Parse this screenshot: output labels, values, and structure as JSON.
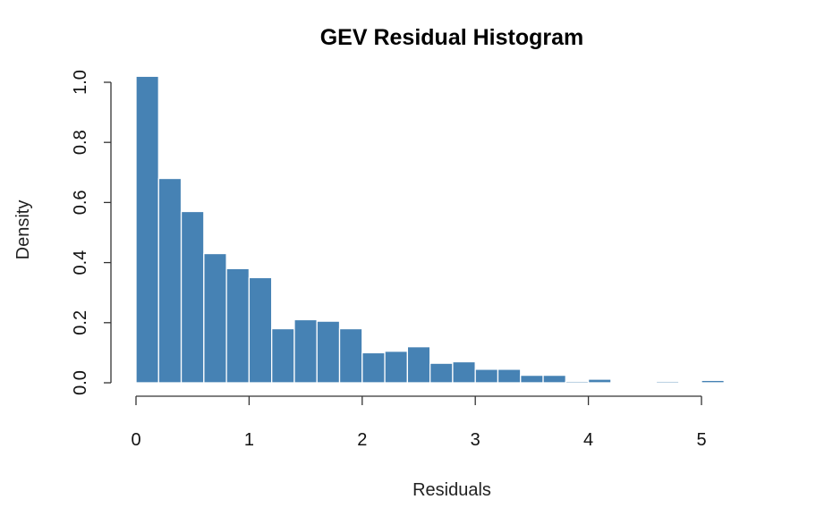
{
  "chart_data": {
    "type": "bar",
    "title": "GEV Residual Histogram",
    "xlabel": "Residuals",
    "ylabel": "Density",
    "bar_color": "#4682b4",
    "border_color": "#ffffff",
    "xlim": [
      0,
      5
    ],
    "ylim": [
      0,
      1
    ],
    "x_ticks": [
      "0",
      "1",
      "2",
      "3",
      "4",
      "5"
    ],
    "y_ticks": [
      "0.0",
      "0.2",
      "0.4",
      "0.6",
      "0.8",
      "1.0"
    ],
    "bin_width": 0.2,
    "bin_starts": [
      0.0,
      0.2,
      0.4,
      0.6,
      0.8,
      1.0,
      1.2,
      1.4,
      1.6,
      1.8,
      2.0,
      2.2,
      2.4,
      2.6,
      2.8,
      3.0,
      3.2,
      3.4,
      3.6,
      3.8,
      4.0,
      4.2,
      4.4,
      4.6,
      4.8,
      5.0
    ],
    "values": [
      1.02,
      0.68,
      0.57,
      0.43,
      0.38,
      0.35,
      0.18,
      0.21,
      0.205,
      0.18,
      0.1,
      0.105,
      0.12,
      0.065,
      0.07,
      0.045,
      0.045,
      0.025,
      0.025,
      0.005,
      0.012,
      0.0,
      0.0,
      0.005,
      0.0,
      0.008
    ],
    "grid": false,
    "legend": "none"
  }
}
